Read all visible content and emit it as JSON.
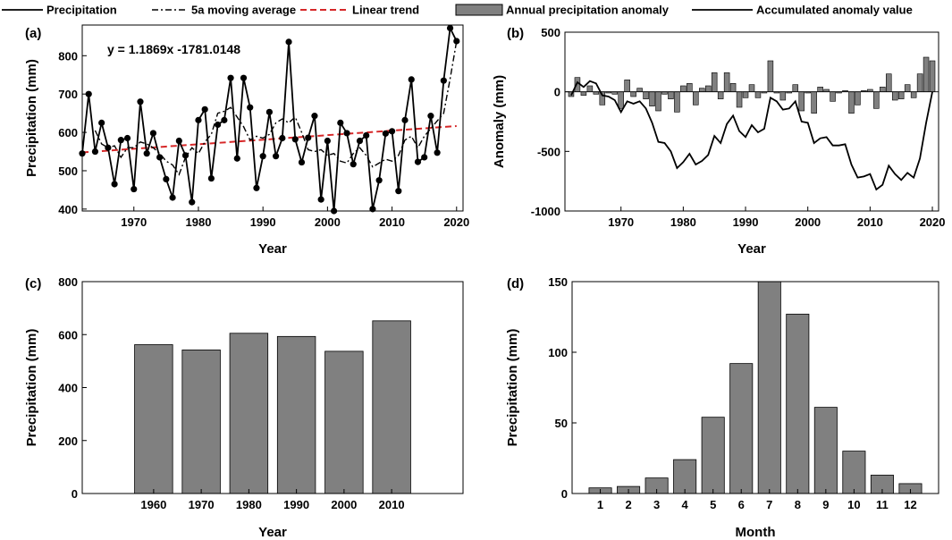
{
  "legend": [
    {
      "label": "Precipitation",
      "style": "solid"
    },
    {
      "label": "5a moving average",
      "style": "dashdot"
    },
    {
      "label": "Linear trend",
      "style": "red-dash"
    },
    {
      "label": "Annual precipitation anomaly",
      "style": "bar"
    },
    {
      "label": "Accumulated anomaly value",
      "style": "solid"
    }
  ],
  "colors": {
    "bar": "#808080",
    "trend": "#d62728",
    "line": "#000000"
  },
  "chart_data": [
    {
      "panel": "(a)",
      "type": "line",
      "xlabel": "Year",
      "ylabel": "Precipitation (mm)",
      "xlim": [
        1962,
        2021
      ],
      "ylim": [
        395,
        880
      ],
      "xticks": [
        1970,
        1980,
        1990,
        2000,
        2010,
        2020
      ],
      "yticks": [
        400,
        500,
        600,
        700,
        800
      ],
      "annotation": "y = 1.1869x -1781.0148",
      "trend": {
        "slope": 1.1869,
        "intercept": -1781.0148
      },
      "series": [
        {
          "name": "Precipitation",
          "x": [
            1962,
            1963,
            1964,
            1965,
            1966,
            1967,
            1968,
            1969,
            1970,
            1971,
            1972,
            1973,
            1974,
            1975,
            1976,
            1977,
            1978,
            1979,
            1980,
            1981,
            1982,
            1983,
            1984,
            1985,
            1986,
            1987,
            1988,
            1989,
            1990,
            1991,
            1992,
            1993,
            1994,
            1995,
            1996,
            1997,
            1998,
            1999,
            2000,
            2001,
            2002,
            2003,
            2004,
            2005,
            2006,
            2007,
            2008,
            2009,
            2010,
            2011,
            2012,
            2013,
            2014,
            2015,
            2016,
            2017,
            2018,
            2019,
            2020
          ],
          "y": [
            545,
            700,
            550,
            625,
            560,
            465,
            580,
            585,
            452,
            680,
            545,
            598,
            535,
            478,
            430,
            578,
            540,
            418,
            632,
            660,
            480,
            620,
            632,
            742,
            532,
            742,
            665,
            455,
            538,
            653,
            538,
            585,
            836,
            582,
            522,
            586,
            643,
            425,
            578,
            395,
            625,
            598,
            517,
            578,
            592,
            400,
            475,
            597,
            603,
            447,
            632,
            738,
            523,
            535,
            643,
            547,
            735,
            872,
            838
          ]
        },
        {
          "name": "5a moving average",
          "x": [
            1964,
            1965,
            1966,
            1967,
            1968,
            1969,
            1970,
            1971,
            1972,
            1973,
            1974,
            1975,
            1976,
            1977,
            1978,
            1979,
            1980,
            1981,
            1982,
            1983,
            1984,
            1985,
            1986,
            1987,
            1988,
            1989,
            1990,
            1991,
            1992,
            1993,
            1994,
            1995,
            1996,
            1997,
            1998,
            1999,
            2000,
            2001,
            2002,
            2003,
            2004,
            2005,
            2006,
            2007,
            2008,
            2009,
            2010,
            2011,
            2012,
            2013,
            2014,
            2015,
            2016,
            2017,
            2018,
            2019,
            2020
          ],
          "y": [
            605,
            570,
            560,
            565,
            535,
            560,
            560,
            575,
            570,
            560,
            545,
            525,
            515,
            490,
            535,
            560,
            545,
            575,
            595,
            650,
            655,
            665,
            640,
            615,
            580,
            590,
            585,
            595,
            625,
            635,
            625,
            640,
            600,
            555,
            550,
            555,
            540,
            545,
            525,
            520,
            545,
            560,
            540,
            510,
            520,
            530,
            525,
            540,
            580,
            590,
            560,
            590,
            610,
            630,
            650,
            740,
            838
          ]
        }
      ]
    },
    {
      "panel": "(b)",
      "type": "bar",
      "xlabel": "Year",
      "ylabel": "Anomaly (mm)",
      "xlim": [
        1961,
        2021
      ],
      "ylim": [
        -1000,
        500
      ],
      "xticks": [
        1970,
        1980,
        1990,
        2000,
        2010,
        2020
      ],
      "yticks": [
        -1000,
        -500,
        0,
        500
      ],
      "x": [
        1962,
        1963,
        1964,
        1965,
        1966,
        1967,
        1968,
        1969,
        1970,
        1971,
        1972,
        1973,
        1974,
        1975,
        1976,
        1977,
        1978,
        1979,
        1980,
        1981,
        1982,
        1983,
        1984,
        1985,
        1986,
        1987,
        1988,
        1989,
        1990,
        1991,
        1992,
        1993,
        1994,
        1995,
        1996,
        1997,
        1998,
        1999,
        2000,
        2001,
        2002,
        2003,
        2004,
        2005,
        2006,
        2007,
        2008,
        2009,
        2010,
        2011,
        2012,
        2013,
        2014,
        2015,
        2016,
        2017,
        2018,
        2019,
        2020
      ],
      "values": [
        -40,
        120,
        -30,
        50,
        -20,
        -110,
        -10,
        -20,
        -140,
        100,
        -40,
        30,
        -60,
        -120,
        -160,
        -20,
        -60,
        -170,
        50,
        70,
        -110,
        30,
        50,
        160,
        -60,
        160,
        70,
        -130,
        -50,
        60,
        -50,
        -10,
        260,
        -10,
        -70,
        -10,
        60,
        -160,
        -10,
        -180,
        40,
        20,
        -80,
        -10,
        10,
        -180,
        -110,
        10,
        20,
        -140,
        40,
        150,
        -70,
        -60,
        60,
        -50,
        150,
        290,
        260
      ],
      "series": [
        {
          "name": "Accumulated anomaly value",
          "x": [
            1962,
            1963,
            1964,
            1965,
            1966,
            1967,
            1968,
            1969,
            1970,
            1971,
            1972,
            1973,
            1974,
            1975,
            1976,
            1977,
            1978,
            1979,
            1980,
            1981,
            1982,
            1983,
            1984,
            1985,
            1986,
            1987,
            1988,
            1989,
            1990,
            1991,
            1992,
            1993,
            1994,
            1995,
            1996,
            1997,
            1998,
            1999,
            2000,
            2001,
            2002,
            2003,
            2004,
            2005,
            2006,
            2007,
            2008,
            2009,
            2010,
            2011,
            2012,
            2013,
            2014,
            2015,
            2016,
            2017,
            2018,
            2019,
            2020
          ],
          "y": [
            -30,
            80,
            40,
            90,
            70,
            -30,
            -40,
            -70,
            -170,
            -80,
            -100,
            -80,
            -140,
            -260,
            -420,
            -430,
            -500,
            -640,
            -590,
            -520,
            -610,
            -580,
            -530,
            -370,
            -430,
            -270,
            -200,
            -330,
            -380,
            -280,
            -340,
            -310,
            -50,
            -80,
            -150,
            -140,
            -80,
            -250,
            -260,
            -430,
            -390,
            -380,
            -450,
            -450,
            -440,
            -610,
            -720,
            -710,
            -690,
            -820,
            -780,
            -620,
            -690,
            -740,
            -680,
            -720,
            -560,
            -260,
            0
          ]
        }
      ]
    },
    {
      "panel": "(c)",
      "type": "bar",
      "xlabel": "Year",
      "ylabel": "Precipitation (mm)",
      "ylim": [
        0,
        800
      ],
      "yticks": [
        0,
        200,
        400,
        600,
        800
      ],
      "categories": [
        "1960",
        "1970",
        "1980",
        "1990",
        "2000",
        "2010"
      ],
      "values": [
        562,
        542,
        605,
        593,
        537,
        652
      ]
    },
    {
      "panel": "(d)",
      "type": "bar",
      "xlabel": "Month",
      "ylabel": "Precipitation (mm)",
      "ylim": [
        0,
        150
      ],
      "yticks": [
        0,
        50,
        100,
        150
      ],
      "categories": [
        "1",
        "2",
        "3",
        "4",
        "5",
        "6",
        "7",
        "8",
        "9",
        "10",
        "11",
        "12"
      ],
      "values": [
        4,
        5,
        11,
        24,
        54,
        92,
        150,
        127,
        61,
        30,
        13,
        7
      ]
    }
  ]
}
